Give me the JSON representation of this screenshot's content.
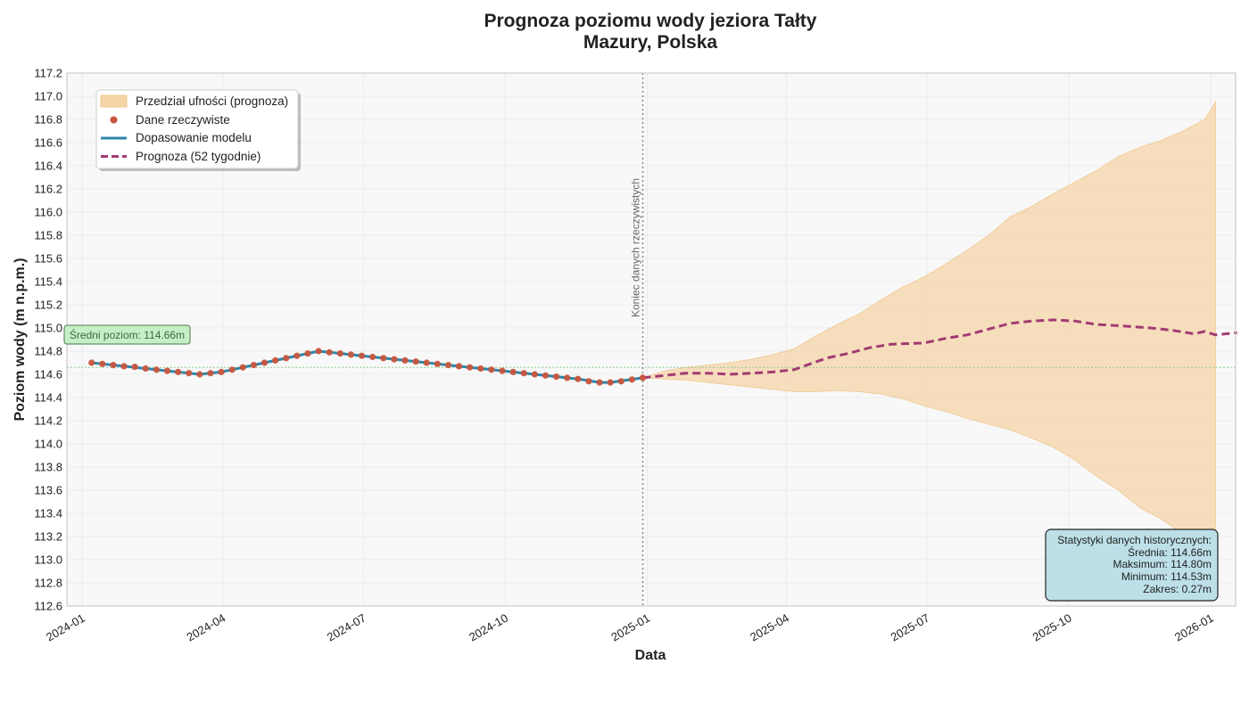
{
  "chart_data": {
    "type": "line",
    "title": "Prognoza poziomu wody jeziora Tałty",
    "subtitle": "Mazury, Polska",
    "xlabel": "Data",
    "ylabel": "Poziom wody (m n.p.m.)",
    "ylim": [
      112.6,
      117.2
    ],
    "xlim": [
      "2023-12-22",
      "2026-01-17"
    ],
    "y_ticks": [
      "112.6",
      "112.8",
      "113.0",
      "113.2",
      "113.4",
      "113.6",
      "113.8",
      "114.0",
      "114.2",
      "114.4",
      "114.6",
      "114.8",
      "115.0",
      "115.2",
      "115.4",
      "115.6",
      "115.8",
      "116.0",
      "116.2",
      "116.4",
      "116.6",
      "116.8",
      "117.0",
      "117.2"
    ],
    "x_ticks": [
      {
        "date": "2024-01-01",
        "label": "2024-01"
      },
      {
        "date": "2024-04-01",
        "label": "2024-04"
      },
      {
        "date": "2024-07-01",
        "label": "2024-07"
      },
      {
        "date": "2024-10-01",
        "label": "2024-10"
      },
      {
        "date": "2025-01-01",
        "label": "2025-01"
      },
      {
        "date": "2025-04-01",
        "label": "2025-04"
      },
      {
        "date": "2025-07-01",
        "label": "2025-07"
      },
      {
        "date": "2025-10-01",
        "label": "2025-10"
      },
      {
        "date": "2026-01-01",
        "label": "2026-01"
      }
    ],
    "grid": true,
    "legend_position": "top-left",
    "mean_level": 114.66,
    "mean_label": "Średni poziom: 114.66m",
    "cutoff_date": "2024-12-29",
    "cutoff_label": "Koniec danych rzeczywistych",
    "colors": {
      "observed": "#c8553d",
      "fit": "#2e86ab",
      "forecast": "#a23b72",
      "band": "#f5d5a8",
      "mean_line": "#8fc98f",
      "cutoff_line": "#888888",
      "mean_box_bg": "#c6efc6",
      "mean_box_border": "#4a7a4a",
      "stats_box_bg": "#bcdfe8"
    },
    "series": [
      {
        "name": "Dane rzeczywiste",
        "kind": "scatter",
        "points": [
          [
            "2024-01-07",
            114.7
          ],
          [
            "2024-01-14",
            114.69
          ],
          [
            "2024-01-21",
            114.68
          ],
          [
            "2024-01-28",
            114.67
          ],
          [
            "2024-02-04",
            114.665
          ],
          [
            "2024-02-11",
            114.65
          ],
          [
            "2024-02-18",
            114.64
          ],
          [
            "2024-02-25",
            114.63
          ],
          [
            "2024-03-03",
            114.62
          ],
          [
            "2024-03-10",
            114.61
          ],
          [
            "2024-03-17",
            114.6
          ],
          [
            "2024-03-24",
            114.61
          ],
          [
            "2024-03-31",
            114.62
          ],
          [
            "2024-04-07",
            114.64
          ],
          [
            "2024-04-14",
            114.66
          ],
          [
            "2024-04-21",
            114.68
          ],
          [
            "2024-04-28",
            114.7
          ],
          [
            "2024-05-05",
            114.72
          ],
          [
            "2024-05-12",
            114.74
          ],
          [
            "2024-05-19",
            114.76
          ],
          [
            "2024-05-26",
            114.78
          ],
          [
            "2024-06-02",
            114.8
          ],
          [
            "2024-06-09",
            114.79
          ],
          [
            "2024-06-16",
            114.78
          ],
          [
            "2024-06-23",
            114.77
          ],
          [
            "2024-06-30",
            114.76
          ],
          [
            "2024-07-07",
            114.75
          ],
          [
            "2024-07-14",
            114.74
          ],
          [
            "2024-07-21",
            114.73
          ],
          [
            "2024-07-28",
            114.72
          ],
          [
            "2024-08-04",
            114.71
          ],
          [
            "2024-08-11",
            114.7
          ],
          [
            "2024-08-18",
            114.69
          ],
          [
            "2024-08-25",
            114.68
          ],
          [
            "2024-09-01",
            114.67
          ],
          [
            "2024-09-08",
            114.66
          ],
          [
            "2024-09-15",
            114.65
          ],
          [
            "2024-09-22",
            114.64
          ],
          [
            "2024-09-29",
            114.63
          ],
          [
            "2024-10-06",
            114.62
          ],
          [
            "2024-10-13",
            114.61
          ],
          [
            "2024-10-20",
            114.6
          ],
          [
            "2024-10-27",
            114.59
          ],
          [
            "2024-11-03",
            114.58
          ],
          [
            "2024-11-10",
            114.57
          ],
          [
            "2024-11-17",
            114.56
          ],
          [
            "2024-11-24",
            114.54
          ],
          [
            "2024-12-01",
            114.53
          ],
          [
            "2024-12-08",
            114.53
          ],
          [
            "2024-12-15",
            114.54
          ],
          [
            "2024-12-22",
            114.555
          ],
          [
            "2024-12-29",
            114.57
          ]
        ]
      },
      {
        "name": "Dopasowanie modelu",
        "kind": "line",
        "points": [
          [
            "2024-01-07",
            114.7
          ],
          [
            "2024-01-28",
            114.67
          ],
          [
            "2024-02-25",
            114.63
          ],
          [
            "2024-03-17",
            114.6
          ],
          [
            "2024-03-31",
            114.62
          ],
          [
            "2024-04-28",
            114.7
          ],
          [
            "2024-05-26",
            114.78
          ],
          [
            "2024-06-02",
            114.8
          ],
          [
            "2024-06-30",
            114.76
          ],
          [
            "2024-07-28",
            114.72
          ],
          [
            "2024-08-25",
            114.68
          ],
          [
            "2024-09-22",
            114.64
          ],
          [
            "2024-10-20",
            114.6
          ],
          [
            "2024-11-17",
            114.56
          ],
          [
            "2024-12-01",
            114.53
          ],
          [
            "2024-12-08",
            114.53
          ],
          [
            "2024-12-29",
            114.57
          ]
        ]
      },
      {
        "name": "Prognoza (52 tygodnie)",
        "kind": "line",
        "points": [
          [
            "2024-12-29",
            114.57
          ],
          [
            "2025-01-26",
            114.61
          ],
          [
            "2025-02-09",
            114.61
          ],
          [
            "2025-02-23",
            114.6
          ],
          [
            "2025-03-09",
            114.61
          ],
          [
            "2025-03-23",
            114.62
          ],
          [
            "2025-04-06",
            114.64
          ],
          [
            "2025-04-27",
            114.74
          ],
          [
            "2025-05-11",
            114.78
          ],
          [
            "2025-05-25",
            114.83
          ],
          [
            "2025-06-08",
            114.86
          ],
          [
            "2025-06-29",
            114.87
          ],
          [
            "2025-07-13",
            114.91
          ],
          [
            "2025-07-27",
            114.94
          ],
          [
            "2025-08-10",
            114.99
          ],
          [
            "2025-08-24",
            115.04
          ],
          [
            "2025-09-07",
            115.06
          ],
          [
            "2025-09-21",
            115.07
          ],
          [
            "2025-10-05",
            115.06
          ],
          [
            "2025-10-19",
            115.03
          ],
          [
            "2025-11-02",
            115.02
          ],
          [
            "2025-11-23",
            115.0
          ],
          [
            "2025-12-07",
            114.98
          ],
          [
            "2025-12-21",
            114.95
          ],
          [
            "2026-01-04",
            114.94
          ],
          [
            "2026-01-18",
            114.96
          ],
          [
            "2025-12-28",
            114.97
          ]
        ]
      },
      {
        "name": "Przedział ufności (prognoza)",
        "kind": "band",
        "points": [
          [
            "2024-12-29",
            114.57,
            114.57
          ],
          [
            "2025-01-12",
            114.63,
            114.56
          ],
          [
            "2025-01-26",
            114.66,
            114.55
          ],
          [
            "2025-02-09",
            114.68,
            114.53
          ],
          [
            "2025-02-23",
            114.7,
            114.51
          ],
          [
            "2025-03-09",
            114.73,
            114.49
          ],
          [
            "2025-03-23",
            114.77,
            114.47
          ],
          [
            "2025-04-06",
            114.82,
            114.45
          ],
          [
            "2025-04-20",
            114.93,
            114.45
          ],
          [
            "2025-05-04",
            115.03,
            114.46
          ],
          [
            "2025-05-18",
            115.12,
            114.45
          ],
          [
            "2025-06-01",
            115.24,
            114.43
          ],
          [
            "2025-06-15",
            115.35,
            114.39
          ],
          [
            "2025-06-29",
            115.44,
            114.33
          ],
          [
            "2025-07-13",
            115.55,
            114.28
          ],
          [
            "2025-07-27",
            115.67,
            114.22
          ],
          [
            "2025-08-10",
            115.8,
            114.17
          ],
          [
            "2025-08-24",
            115.96,
            114.12
          ],
          [
            "2025-09-07",
            116.05,
            114.05
          ],
          [
            "2025-09-21",
            116.16,
            113.97
          ],
          [
            "2025-10-05",
            116.26,
            113.86
          ],
          [
            "2025-10-19",
            116.36,
            113.72
          ],
          [
            "2025-11-02",
            116.48,
            113.6
          ],
          [
            "2025-11-16",
            116.56,
            113.45
          ],
          [
            "2025-11-30",
            116.62,
            113.35
          ],
          [
            "2025-12-14",
            116.7,
            113.22
          ],
          [
            "2025-12-28",
            116.8,
            113.1
          ],
          [
            "2026-01-04",
            116.95,
            113.0
          ]
        ]
      }
    ]
  },
  "stats": {
    "title": "Statystyki danych historycznych:",
    "lines": [
      "Średnia: 114.66m",
      "Maksimum: 114.80m",
      "Minimum: 114.53m",
      "Zakres: 0.27m"
    ]
  }
}
